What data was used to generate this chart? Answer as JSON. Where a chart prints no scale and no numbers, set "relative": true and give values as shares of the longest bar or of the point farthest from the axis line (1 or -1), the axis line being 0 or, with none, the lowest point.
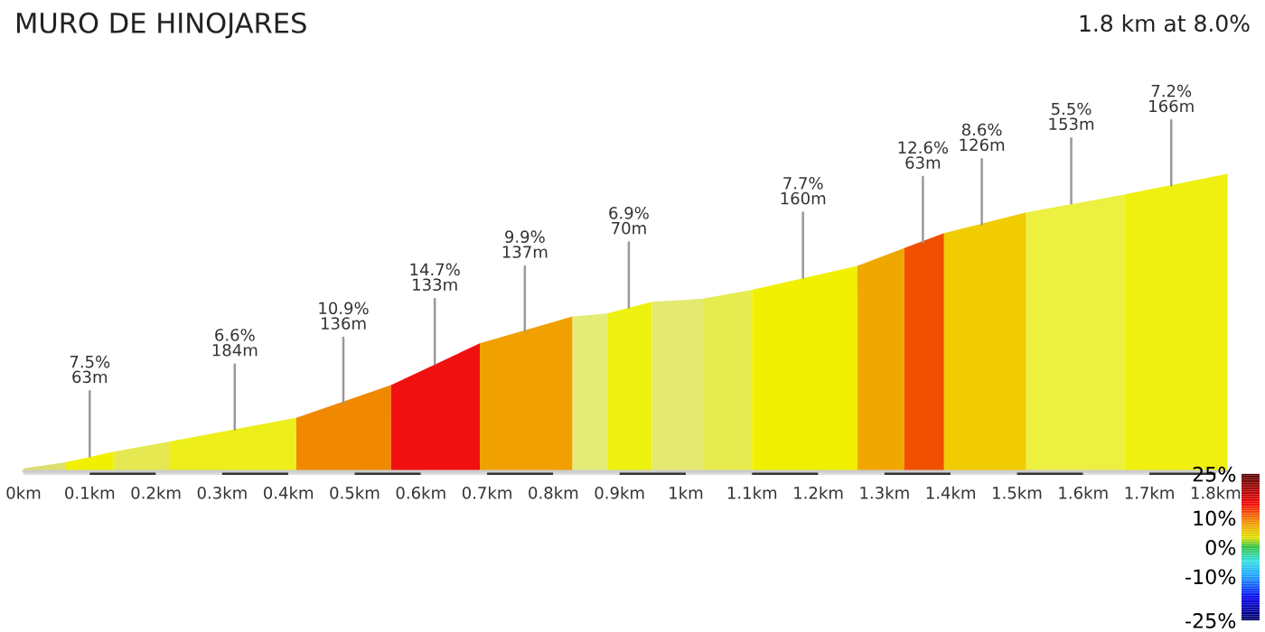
{
  "chart_data": {
    "type": "area",
    "title": "MURO DE HINOJARES",
    "subtitle": "1.8 km at 8.0%",
    "relative": true,
    "tick_labels": "x",
    "grid": false,
    "xlim": [
      0,
      1.82
    ],
    "xticks": [
      {
        "value": 0,
        "label": "0km"
      },
      {
        "value": 0.1,
        "label": "0.1km"
      },
      {
        "value": 0.2,
        "label": "0.2km"
      },
      {
        "value": 0.3,
        "label": "0.3km"
      },
      {
        "value": 0.4,
        "label": "0.4km"
      },
      {
        "value": 0.5,
        "label": "0.5km"
      },
      {
        "value": 0.6,
        "label": "0.6km"
      },
      {
        "value": 0.7,
        "label": "0.7km"
      },
      {
        "value": 0.8,
        "label": "0.8km"
      },
      {
        "value": 0.9,
        "label": "0.9km"
      },
      {
        "value": 1,
        "label": "1km"
      },
      {
        "value": 1.1,
        "label": "1.1km"
      },
      {
        "value": 1.2,
        "label": "1.2km"
      },
      {
        "value": 1.3,
        "label": "1.3km"
      },
      {
        "value": 1.4,
        "label": "1.4km"
      },
      {
        "value": 1.5,
        "label": "1.5km"
      },
      {
        "value": 1.6,
        "label": "1.6km"
      },
      {
        "value": 1.7,
        "label": "1.7km"
      },
      {
        "value": 1.8,
        "label": "1.8km"
      }
    ],
    "series": [
      {
        "color": "#dede70",
        "x": [
          0,
          0.064
        ],
        "values": [
          0.01,
          0.03
        ]
      },
      {
        "color": "#f0f000",
        "x": [
          0.064,
          0.136
        ],
        "values": [
          0.03,
          0.066
        ]
      },
      {
        "color": "#e5e850",
        "x": [
          0.136,
          0.221
        ],
        "values": [
          0.066,
          0.1
        ]
      },
      {
        "color": "#eeee1a",
        "x": [
          0.221,
          0.412
        ],
        "values": [
          0.1,
          0.18
        ]
      },
      {
        "color": "#f08800",
        "x": [
          0.412,
          0.555
        ],
        "values": [
          0.18,
          0.29
        ]
      },
      {
        "color": "#f01010",
        "x": [
          0.555,
          0.689
        ],
        "values": [
          0.29,
          0.43
        ]
      },
      {
        "color": "#f0a000",
        "x": [
          0.689,
          0.829
        ],
        "values": [
          0.43,
          0.52
        ]
      },
      {
        "color": "#e4ec78",
        "x": [
          0.829,
          0.881
        ],
        "values": [
          0.52,
          0.53
        ]
      },
      {
        "color": "#eef010",
        "x": [
          0.881,
          0.949
        ],
        "values": [
          0.53,
          0.57
        ]
      },
      {
        "color": "#e4ea70",
        "x": [
          0.949,
          1.026
        ],
        "values": [
          0.57,
          0.58
        ]
      },
      {
        "color": "#e6ec50",
        "x": [
          1.026,
          1.1
        ],
        "values": [
          0.58,
          0.61
        ]
      },
      {
        "color": "#f0f000",
        "x": [
          1.1,
          1.259
        ],
        "values": [
          0.61,
          0.69
        ]
      },
      {
        "color": "#f0a800",
        "x": [
          1.259,
          1.33
        ],
        "values": [
          0.69,
          0.75
        ]
      },
      {
        "color": "#f05000",
        "x": [
          1.33,
          1.39
        ],
        "values": [
          0.75,
          0.8
        ]
      },
      {
        "color": "#f0cc00",
        "x": [
          1.39,
          1.514
        ],
        "values": [
          0.8,
          0.87
        ]
      },
      {
        "color": "#ecf040",
        "x": [
          1.514,
          1.662
        ],
        "values": [
          0.87,
          0.93
        ]
      },
      {
        "color": "#f0f010",
        "x": [
          1.662,
          1.818
        ],
        "values": [
          0.93,
          1
        ]
      }
    ],
    "annotations": [
      {
        "text": "7.5%\n63m",
        "x": 0.1,
        "y": 0.05
      },
      {
        "text": "6.6%\n184m",
        "x": 0.319,
        "y": 0.14
      },
      {
        "text": "10.9%\n136m",
        "x": 0.483,
        "y": 0.23
      },
      {
        "text": "14.7%\n133m",
        "x": 0.621,
        "y": 0.36
      },
      {
        "text": "9.9%\n137m",
        "x": 0.757,
        "y": 0.47
      },
      {
        "text": "6.9%\n70m",
        "x": 0.914,
        "y": 0.55
      },
      {
        "text": "7.7%\n160m",
        "x": 1.177,
        "y": 0.65
      },
      {
        "text": "12.6%\n63m",
        "x": 1.358,
        "y": 0.77
      },
      {
        "text": "8.6%\n126m",
        "x": 1.447,
        "y": 0.83
      },
      {
        "text": "5.5%\n153m",
        "x": 1.582,
        "y": 0.9
      },
      {
        "text": "7.2%\n166m",
        "x": 1.733,
        "y": 0.96
      }
    ],
    "clim": [
      -25,
      25
    ],
    "cticks": [
      {
        "value": 25,
        "label": "25%"
      },
      {
        "value": 10,
        "label": "10%"
      },
      {
        "value": 0,
        "label": "0%"
      },
      {
        "value": -10,
        "label": "-10%"
      },
      {
        "value": -25,
        "label": "-25%"
      }
    ]
  }
}
